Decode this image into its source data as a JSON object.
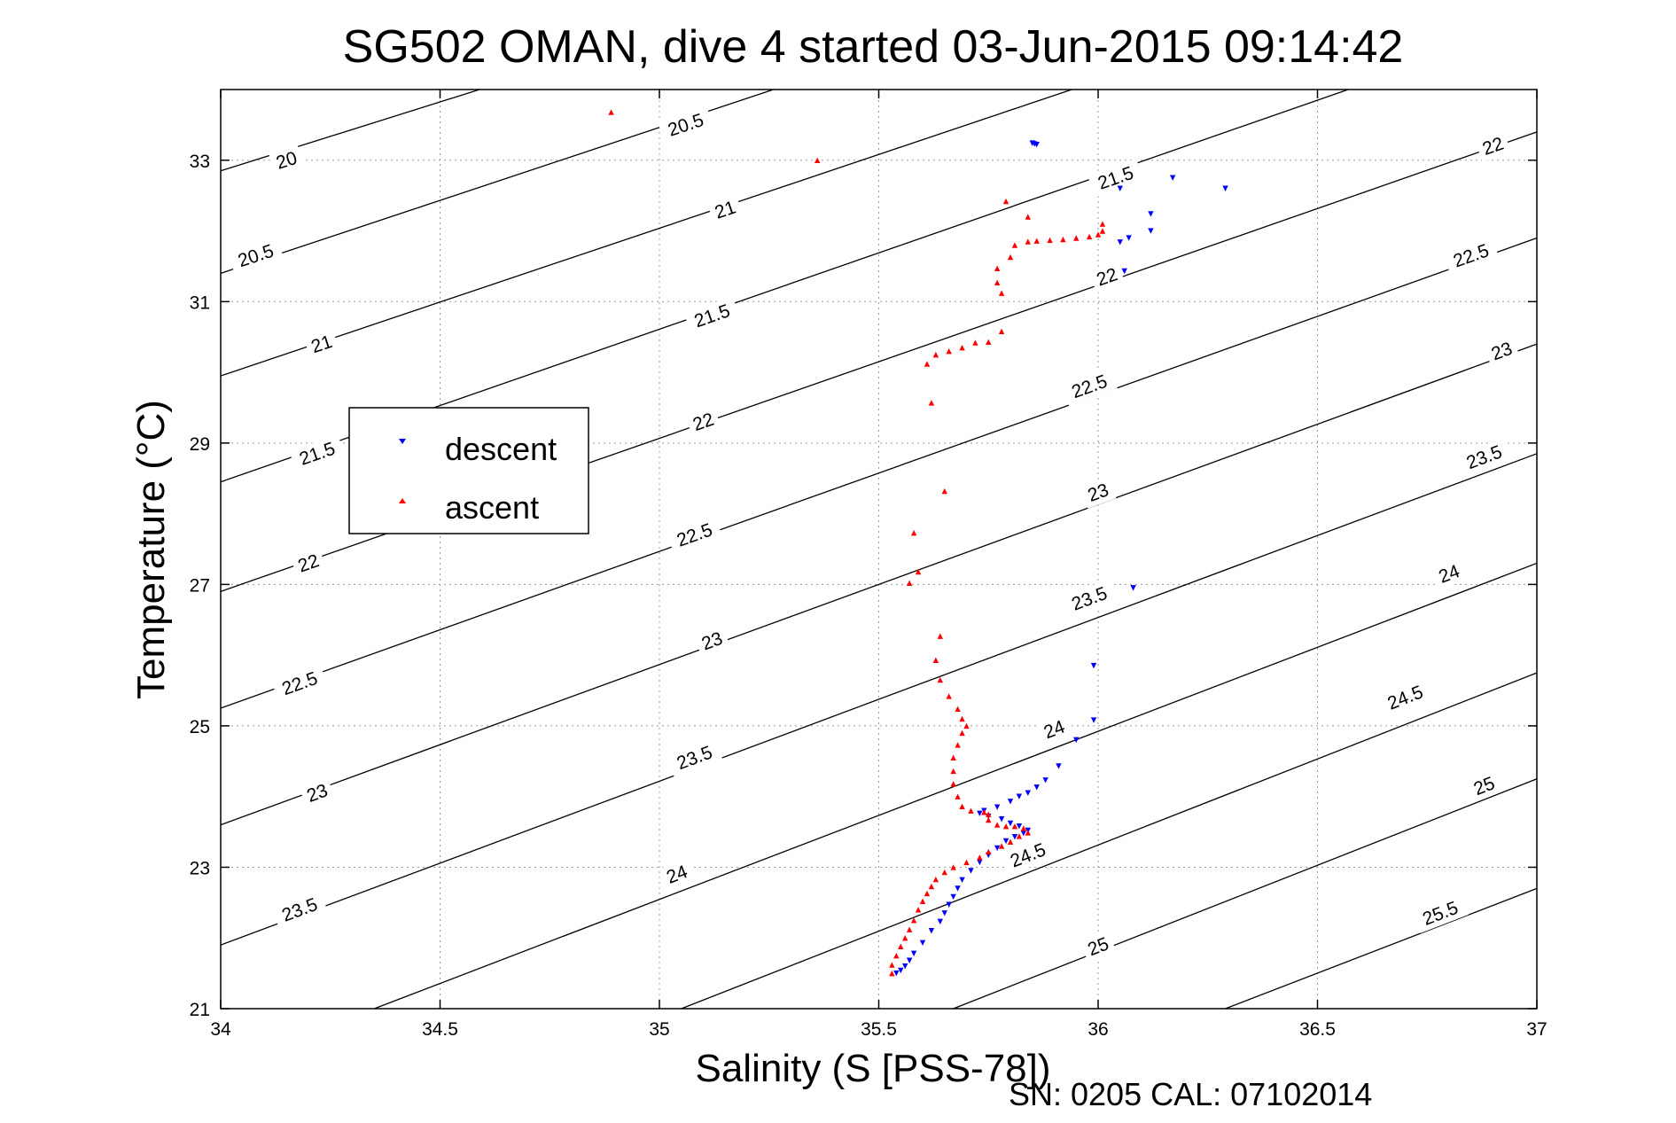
{
  "chart_data": {
    "type": "scatter",
    "title": "SG502 OMAN, dive 4 started 03-Jun-2015 09:14:42",
    "xlabel": "Salinity (S [PSS-78])",
    "ylabel": "Temperature (°C)",
    "xlim": [
      34,
      37
    ],
    "ylim": [
      21,
      34
    ],
    "xticks": [
      34,
      34.5,
      35,
      35.5,
      36,
      36.5,
      37
    ],
    "xtick_labels": [
      "34",
      "34.5",
      "35",
      "35.5",
      "36",
      "36.5",
      "37"
    ],
    "yticks": [
      21,
      23,
      25,
      27,
      29,
      31,
      33
    ],
    "ytick_labels": [
      "21",
      "23",
      "25",
      "27",
      "29",
      "31",
      "33"
    ],
    "grid": true,
    "legend_position": "upper-left",
    "footer": "SN: 0205  CAL: 07102014",
    "colors": {
      "descent": "#0000ff",
      "ascent": "#ff0000",
      "contour": "#000000",
      "grid": "#9a9a9a"
    },
    "series": [
      {
        "name": "descent",
        "marker": "triangle-down",
        "points": [
          [
            35.85,
            33.24
          ],
          [
            35.86,
            33.22
          ],
          [
            35.855,
            33.23
          ],
          [
            36.05,
            32.6
          ],
          [
            36.17,
            32.75
          ],
          [
            36.29,
            32.6
          ],
          [
            36.12,
            32.24
          ],
          [
            36.12,
            32.0
          ],
          [
            36.07,
            31.9
          ],
          [
            36.05,
            31.84
          ],
          [
            36.06,
            31.43
          ],
          [
            36.08,
            26.95
          ],
          [
            35.99,
            25.85
          ],
          [
            35.99,
            25.08
          ],
          [
            35.95,
            24.8
          ],
          [
            35.91,
            24.43
          ],
          [
            35.88,
            24.23
          ],
          [
            35.86,
            24.13
          ],
          [
            35.84,
            24.05
          ],
          [
            35.82,
            24.0
          ],
          [
            35.8,
            23.93
          ],
          [
            35.77,
            23.85
          ],
          [
            35.74,
            23.8
          ],
          [
            35.73,
            23.76
          ],
          [
            35.75,
            23.72
          ],
          [
            35.78,
            23.68
          ],
          [
            35.8,
            23.62
          ],
          [
            35.82,
            23.58
          ],
          [
            35.84,
            23.52
          ],
          [
            35.83,
            23.48
          ],
          [
            35.81,
            23.43
          ],
          [
            35.79,
            23.37
          ],
          [
            35.77,
            23.27
          ],
          [
            35.75,
            23.17
          ],
          [
            35.73,
            23.07
          ],
          [
            35.71,
            22.95
          ],
          [
            35.69,
            22.82
          ],
          [
            35.68,
            22.7
          ],
          [
            35.67,
            22.58
          ],
          [
            35.66,
            22.47
          ],
          [
            35.65,
            22.35
          ],
          [
            35.64,
            22.23
          ],
          [
            35.62,
            22.1
          ],
          [
            35.6,
            21.93
          ],
          [
            35.58,
            21.78
          ],
          [
            35.57,
            21.68
          ],
          [
            35.56,
            21.6
          ],
          [
            35.55,
            21.54
          ],
          [
            35.54,
            21.5
          ]
        ]
      },
      {
        "name": "ascent",
        "marker": "triangle-up",
        "points": [
          [
            34.89,
            33.68
          ],
          [
            35.36,
            33.0
          ],
          [
            35.79,
            32.42
          ],
          [
            35.84,
            32.2
          ],
          [
            36.01,
            32.1
          ],
          [
            36.01,
            32.0
          ],
          [
            36.0,
            31.95
          ],
          [
            35.98,
            31.92
          ],
          [
            35.95,
            31.9
          ],
          [
            35.92,
            31.88
          ],
          [
            35.89,
            31.87
          ],
          [
            35.86,
            31.86
          ],
          [
            35.84,
            31.85
          ],
          [
            35.81,
            31.8
          ],
          [
            35.8,
            31.63
          ],
          [
            35.77,
            31.47
          ],
          [
            35.77,
            31.27
          ],
          [
            35.78,
            31.12
          ],
          [
            35.78,
            30.58
          ],
          [
            35.75,
            30.43
          ],
          [
            35.72,
            30.42
          ],
          [
            35.69,
            30.35
          ],
          [
            35.66,
            30.3
          ],
          [
            35.63,
            30.25
          ],
          [
            35.61,
            30.12
          ],
          [
            35.62,
            29.57
          ],
          [
            35.65,
            28.32
          ],
          [
            35.58,
            27.73
          ],
          [
            35.59,
            27.18
          ],
          [
            35.57,
            27.02
          ],
          [
            35.64,
            26.27
          ],
          [
            35.63,
            25.93
          ],
          [
            35.64,
            25.65
          ],
          [
            35.66,
            25.42
          ],
          [
            35.68,
            25.24
          ],
          [
            35.69,
            25.1
          ],
          [
            35.7,
            25.0
          ],
          [
            35.69,
            24.9
          ],
          [
            35.68,
            24.73
          ],
          [
            35.67,
            24.55
          ],
          [
            35.67,
            24.36
          ],
          [
            35.67,
            24.18
          ],
          [
            35.68,
            24.0
          ],
          [
            35.69,
            23.86
          ],
          [
            35.71,
            23.8
          ],
          [
            35.74,
            23.78
          ],
          [
            35.75,
            23.75
          ],
          [
            35.75,
            23.67
          ],
          [
            35.77,
            23.6
          ],
          [
            35.79,
            23.58
          ],
          [
            35.81,
            23.58
          ],
          [
            35.83,
            23.55
          ],
          [
            35.84,
            23.49
          ],
          [
            35.82,
            23.44
          ],
          [
            35.8,
            23.36
          ],
          [
            35.78,
            23.3
          ],
          [
            35.75,
            23.22
          ],
          [
            35.73,
            23.14
          ],
          [
            35.7,
            23.07
          ],
          [
            35.67,
            23.0
          ],
          [
            35.65,
            22.93
          ],
          [
            35.63,
            22.83
          ],
          [
            35.62,
            22.73
          ],
          [
            35.61,
            22.63
          ],
          [
            35.6,
            22.52
          ],
          [
            35.59,
            22.4
          ],
          [
            35.58,
            22.25
          ],
          [
            35.57,
            22.12
          ],
          [
            35.56,
            22.0
          ],
          [
            35.55,
            21.88
          ],
          [
            35.54,
            21.75
          ],
          [
            35.53,
            21.62
          ],
          [
            35.53,
            21.5
          ]
        ]
      }
    ],
    "contours": [
      {
        "level": "20",
        "x0": 34.0,
        "y0": 32.85,
        "x1": 34.59,
        "y1": 34.0,
        "label_x": 34.15,
        "label_y": 33.0
      },
      {
        "level": "20.5",
        "x0": 34.0,
        "y0": 31.4,
        "x1": 35.26,
        "y1": 34.0,
        "label_x": 34.08,
        "label_y": 31.65,
        "label2_x": 35.06,
        "label2_y": 33.5
      },
      {
        "level": "21",
        "x0": 34.0,
        "y0": 29.95,
        "x1": 35.94,
        "y1": 34.0,
        "label_x": 34.23,
        "label_y": 30.4,
        "label2_x": 35.15,
        "label2_y": 32.3
      },
      {
        "level": "21.5",
        "x0": 34.0,
        "y0": 28.45,
        "x1": 36.57,
        "y1": 34.0,
        "label_x": 34.22,
        "label_y": 28.85,
        "label2_x": 35.12,
        "label2_y": 30.8,
        "label3_x": 36.04,
        "label3_y": 32.75
      },
      {
        "level": "22",
        "x0": 34.0,
        "y0": 26.9,
        "x1": 37.0,
        "y1": 33.4,
        "label_x": 34.2,
        "label_y": 27.3,
        "label2_x": 35.1,
        "label2_y": 29.3,
        "label3_x": 36.02,
        "label3_y": 31.35,
        "label4_x": 36.9,
        "label4_y": 33.2
      },
      {
        "level": "22.5",
        "x0": 34.0,
        "y0": 25.25,
        "x1": 37.0,
        "y1": 31.9,
        "label_x": 34.18,
        "label_y": 25.6,
        "label2_x": 35.08,
        "label2_y": 27.7,
        "label3_x": 35.98,
        "label3_y": 29.8,
        "label4_x": 36.85,
        "label4_y": 31.65
      },
      {
        "level": "23",
        "x0": 34.0,
        "y0": 23.6,
        "x1": 37.0,
        "y1": 30.4,
        "label_x": 34.22,
        "label_y": 24.05,
        "label2_x": 35.12,
        "label2_y": 26.2,
        "label3_x": 36.0,
        "label3_y": 28.3,
        "label4_x": 36.92,
        "label4_y": 30.3
      },
      {
        "level": "23.5",
        "x0": 34.0,
        "y0": 21.9,
        "x1": 37.0,
        "y1": 28.85,
        "label_x": 34.18,
        "label_y": 22.4,
        "label2_x": 35.08,
        "label2_y": 24.55,
        "label3_x": 35.98,
        "label3_y": 26.8,
        "label4_x": 36.88,
        "label4_y": 28.8
      },
      {
        "level": "24",
        "x0": 34.35,
        "y0": 21.0,
        "x1": 37.0,
        "y1": 27.3,
        "label_x": 35.04,
        "label_y": 22.9,
        "label2_x": 35.9,
        "label2_y": 24.95,
        "label3_x": 36.8,
        "label3_y": 27.15
      },
      {
        "level": "24.5",
        "x0": 35.05,
        "y0": 21.0,
        "x1": 37.0,
        "y1": 25.75,
        "label_x": 35.84,
        "label_y": 23.17,
        "label2_x": 36.7,
        "label2_y": 25.4
      },
      {
        "level": "25",
        "x0": 35.67,
        "y0": 21.0,
        "x1": 37.0,
        "y1": 24.25,
        "label_x": 36.0,
        "label_y": 21.88,
        "label2_x": 36.88,
        "label2_y": 24.15
      },
      {
        "level": "25.5",
        "x0": 36.29,
        "y0": 21.0,
        "x1": 37.0,
        "y1": 22.7,
        "label_x": 36.78,
        "label_y": 22.35
      }
    ]
  }
}
